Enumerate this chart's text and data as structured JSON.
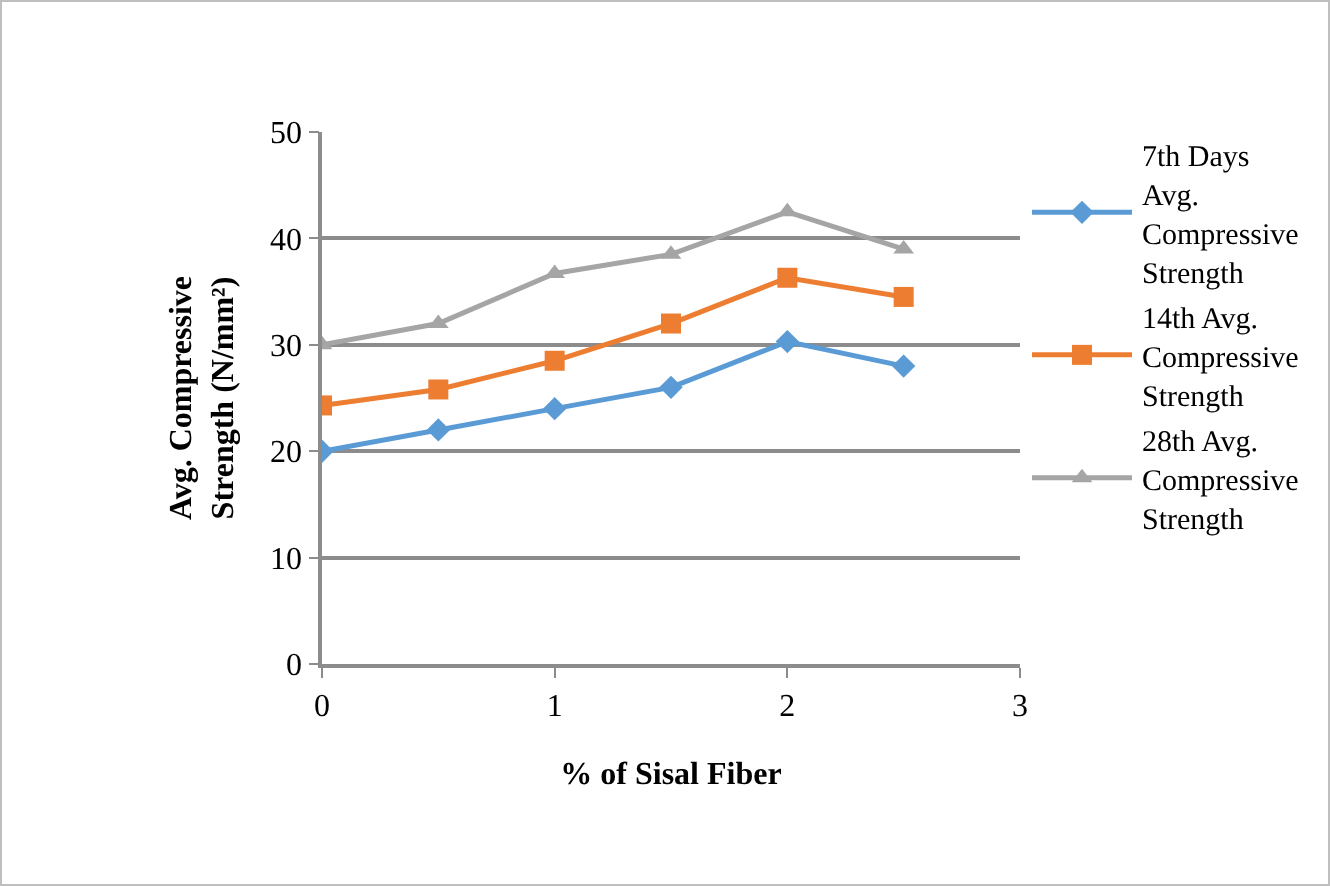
{
  "chart_data": {
    "type": "line",
    "xlabel": "% of Sisal Fiber",
    "ylabel": "Avg. Compressive Strength (N/mm²)",
    "x": [
      0,
      0.5,
      1,
      1.5,
      2,
      2.5
    ],
    "series": [
      {
        "name": "7th Days Avg. Compressive Strength",
        "color": "#5b9bd5",
        "marker": "diamond",
        "values": [
          20,
          22,
          24,
          26,
          30.3,
          28
        ]
      },
      {
        "name": "14th Avg. Compressive Strength",
        "color": "#ed7d31",
        "marker": "square",
        "values": [
          24.3,
          25.8,
          28.5,
          32,
          36.3,
          34.5
        ]
      },
      {
        "name": "28th Avg. Compressive Strength",
        "color": "#a5a5a5",
        "marker": "triangle",
        "values": [
          30,
          32,
          36.7,
          38.5,
          42.5,
          39
        ]
      }
    ],
    "xlim": [
      0,
      3
    ],
    "xticks": [
      0,
      1,
      2,
      3
    ],
    "ylim": [
      0,
      50
    ],
    "yticks": [
      0,
      10,
      20,
      30,
      40,
      50
    ],
    "grid": "y",
    "legend": "right",
    "line_style": "solid"
  }
}
